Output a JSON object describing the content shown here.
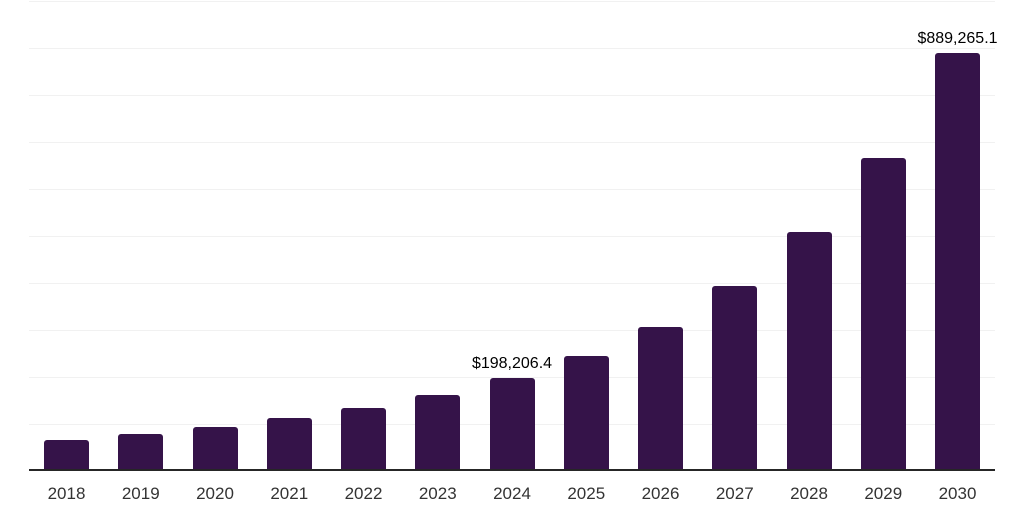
{
  "chart_data": {
    "type": "bar",
    "title": "",
    "xlabel": "",
    "ylabel": "",
    "categories": [
      "2018",
      "2019",
      "2020",
      "2021",
      "2022",
      "2023",
      "2024",
      "2025",
      "2026",
      "2027",
      "2028",
      "2029",
      "2030"
    ],
    "values": [
      65300,
      77700,
      93500,
      111900,
      133300,
      162500,
      198206.4,
      245400,
      306600,
      394400,
      508700,
      667000,
      889265.1
    ],
    "data_labels": [
      {
        "category": "2024",
        "text": "$198,206.4"
      },
      {
        "category": "2030",
        "text": "$889,265.1"
      }
    ],
    "ylim": [
      0,
      1000000
    ],
    "gridline_interval": 100000,
    "grid": "horizontal-only",
    "legend": "none",
    "y_tick_labels": "none",
    "colors": {
      "bar": "#351349",
      "axis_line": "#262626",
      "gridline": "#f1f1f1",
      "x_label": "#333333",
      "data_label": "#000000",
      "background": "#ffffff"
    }
  }
}
